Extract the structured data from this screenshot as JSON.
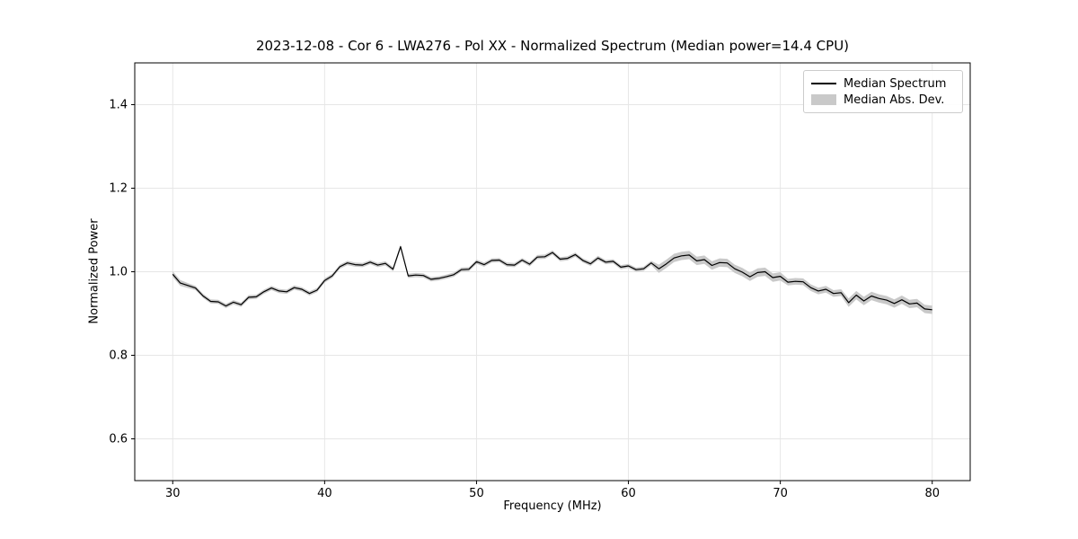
{
  "chart_data": {
    "type": "line",
    "title": "2023-12-08 - Cor 6 - LWA276 - Pol XX - Normalized Spectrum (Median power=14.4 CPU)",
    "xlabel": "Frequency (MHz)",
    "ylabel": "Normalized Power",
    "xlim": [
      27.5,
      82.5
    ],
    "ylim": [
      0.5,
      1.5
    ],
    "xticks": [
      30,
      40,
      50,
      60,
      70,
      80
    ],
    "xtick_labels": [
      "30",
      "40",
      "50",
      "60",
      "70",
      "80"
    ],
    "yticks": [
      0.6,
      0.8,
      1.0,
      1.2,
      1.4
    ],
    "ytick_labels": [
      "0.6",
      "0.8",
      "1.0",
      "1.2",
      "1.4"
    ],
    "grid": true,
    "grid_color": "#e6e6e6",
    "line_color": "#000000",
    "band_color": "#c9c9c9",
    "legend": [
      {
        "label": "Median Spectrum",
        "type": "line"
      },
      {
        "label": "Median Abs. Dev.",
        "type": "patch"
      }
    ],
    "legend_position": "upper right",
    "x": [
      30.0,
      30.5,
      31.0,
      31.5,
      32.0,
      32.5,
      33.0,
      33.5,
      34.0,
      34.5,
      35.0,
      35.5,
      36.0,
      36.5,
      37.0,
      37.5,
      38.0,
      38.5,
      39.0,
      39.5,
      40.0,
      40.5,
      41.0,
      41.5,
      42.0,
      42.5,
      43.0,
      43.5,
      44.0,
      44.5,
      45.0,
      45.5,
      46.0,
      46.5,
      47.0,
      47.5,
      48.0,
      48.5,
      49.0,
      49.5,
      50.0,
      50.5,
      51.0,
      51.5,
      52.0,
      52.5,
      53.0,
      53.5,
      54.0,
      54.5,
      55.0,
      55.5,
      56.0,
      56.5,
      57.0,
      57.5,
      58.0,
      58.5,
      59.0,
      59.5,
      60.0,
      60.5,
      61.0,
      61.5,
      62.0,
      62.5,
      63.0,
      63.5,
      64.0,
      64.5,
      65.0,
      65.5,
      66.0,
      66.5,
      67.0,
      67.5,
      68.0,
      68.5,
      69.0,
      69.5,
      70.0,
      70.5,
      71.0,
      71.5,
      72.0,
      72.5,
      73.0,
      73.5,
      74.0,
      74.5,
      75.0,
      75.5,
      76.0,
      76.5,
      77.0,
      77.5,
      78.0,
      78.5,
      79.0,
      79.5,
      80.0
    ],
    "median_spectrum": [
      0.994,
      0.973,
      0.967,
      0.961,
      0.942,
      0.929,
      0.928,
      0.918,
      0.927,
      0.921,
      0.939,
      0.94,
      0.952,
      0.961,
      0.954,
      0.952,
      0.962,
      0.958,
      0.948,
      0.956,
      0.979,
      0.99,
      1.012,
      1.021,
      1.017,
      1.016,
      1.023,
      1.016,
      1.02,
      1.006,
      1.06,
      0.99,
      0.992,
      0.991,
      0.982,
      0.984,
      0.988,
      0.993,
      1.005,
      1.006,
      1.024,
      1.017,
      1.027,
      1.028,
      1.017,
      1.016,
      1.028,
      1.018,
      1.035,
      1.036,
      1.046,
      1.03,
      1.032,
      1.041,
      1.027,
      1.019,
      1.033,
      1.023,
      1.025,
      1.011,
      1.014,
      1.005,
      1.007,
      1.021,
      1.007,
      1.019,
      1.033,
      1.038,
      1.04,
      1.026,
      1.029,
      1.015,
      1.022,
      1.021,
      1.007,
      0.999,
      0.988,
      0.998,
      1.0,
      0.986,
      0.989,
      0.975,
      0.977,
      0.976,
      0.962,
      0.954,
      0.958,
      0.948,
      0.95,
      0.926,
      0.944,
      0.93,
      0.942,
      0.936,
      0.932,
      0.924,
      0.933,
      0.923,
      0.925,
      0.911,
      0.909
    ],
    "median_abs_dev": [
      0.007,
      0.007,
      0.006,
      0.005,
      0.005,
      0.005,
      0.005,
      0.005,
      0.005,
      0.005,
      0.005,
      0.005,
      0.005,
      0.005,
      0.005,
      0.005,
      0.005,
      0.005,
      0.005,
      0.005,
      0.005,
      0.005,
      0.005,
      0.005,
      0.005,
      0.005,
      0.005,
      0.005,
      0.005,
      0.005,
      0.005,
      0.005,
      0.005,
      0.005,
      0.005,
      0.005,
      0.005,
      0.005,
      0.005,
      0.005,
      0.005,
      0.005,
      0.005,
      0.005,
      0.005,
      0.005,
      0.005,
      0.005,
      0.005,
      0.005,
      0.005,
      0.005,
      0.005,
      0.005,
      0.005,
      0.005,
      0.005,
      0.005,
      0.005,
      0.005,
      0.005,
      0.005,
      0.005,
      0.005,
      0.01,
      0.01,
      0.01,
      0.01,
      0.01,
      0.01,
      0.01,
      0.01,
      0.01,
      0.01,
      0.01,
      0.01,
      0.01,
      0.01,
      0.01,
      0.01,
      0.01,
      0.008,
      0.008,
      0.008,
      0.008,
      0.008,
      0.008,
      0.008,
      0.008,
      0.01,
      0.01,
      0.01,
      0.01,
      0.01,
      0.01,
      0.01,
      0.01,
      0.01,
      0.01,
      0.01,
      0.01
    ]
  }
}
